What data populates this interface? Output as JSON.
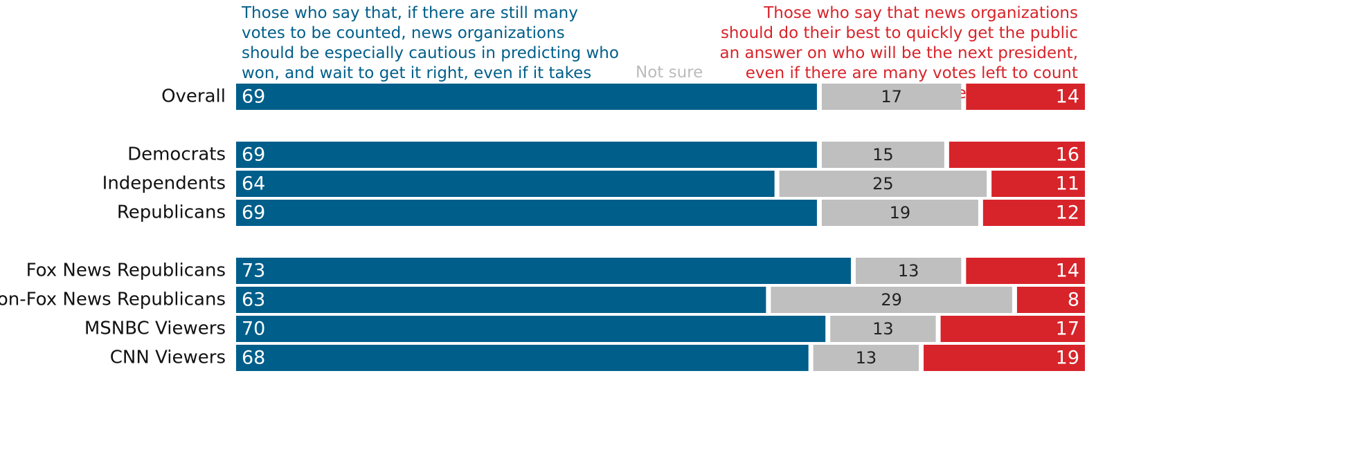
{
  "chart_data": {
    "type": "stacked_bar_horizontal",
    "categories": [
      "Overall",
      null,
      "Democrats",
      "Independents",
      "Republicans",
      null,
      "Fox News Republicans",
      "Non-Fox News Republicans",
      "MSNBC Viewers",
      "CNN Viewers"
    ],
    "series": [
      {
        "name": "Those who say that, if there are still many votes to be counted, news organizations should be especially cautious in predicting who won, and wait to get it right, even if it takes days or weeks",
        "color": "#005e8a",
        "values": [
          69,
          null,
          69,
          64,
          69,
          null,
          73,
          63,
          70,
          68
        ]
      },
      {
        "name": "Not sure",
        "color": "#bfbfbf",
        "values": [
          17,
          null,
          15,
          25,
          19,
          null,
          13,
          29,
          13,
          13
        ]
      },
      {
        "name": "Those who say that news organizations should do their best to quickly get the public an answer on who will be the next president, even if there are many votes left to count after Election Day",
        "color": "#d7242a",
        "values": [
          14,
          null,
          16,
          11,
          12,
          null,
          14,
          8,
          17,
          19
        ]
      }
    ]
  }
}
